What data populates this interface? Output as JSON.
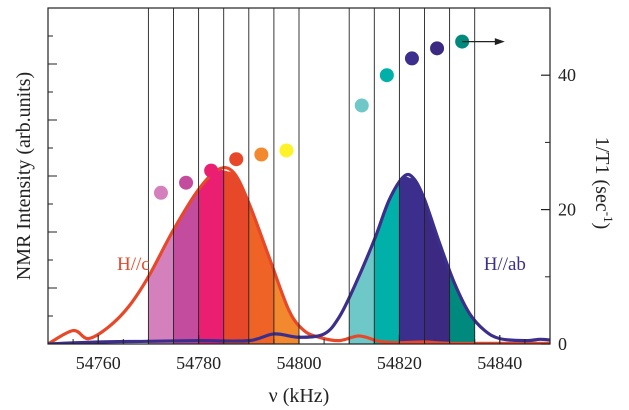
{
  "chart_data": {
    "type": "line",
    "title": "",
    "xlabel": "ν (kHz)",
    "ylabel_left": "NMR Intensity (arb.units)",
    "ylabel_right_base": "1/T1 (sec",
    "ylabel_right_sup": "-1",
    "ylabel_right_close": ")",
    "xlim": [
      54750,
      54850
    ],
    "ylim_right": [
      0,
      50
    ],
    "x_ticks": [
      54760,
      54780,
      54800,
      54820,
      54840
    ],
    "y_right_ticks": [
      0,
      20,
      40
    ],
    "grid": false,
    "band_edges": [
      54770,
      54775,
      54780,
      54785,
      54790,
      54795,
      54800,
      54810,
      54815,
      54820,
      54825,
      54830,
      54835
    ],
    "series": [
      {
        "name": "H//c",
        "color": "#e8482a",
        "x": [
          54750,
          54755,
          54758,
          54762,
          54766,
          54770,
          54775,
          54780,
          54784,
          54787,
          54790,
          54794,
          54798,
          54801,
          54804,
          54808,
          54812,
          54816,
          54820,
          54825,
          54830,
          54840,
          54850
        ],
        "y": [
          0,
          2,
          0.8,
          2.5,
          5.5,
          10,
          17,
          23,
          26,
          25.5,
          21,
          13,
          5,
          2,
          1,
          0.5,
          1.2,
          0.4,
          0.2,
          0.3,
          0.1,
          0.1,
          0.1
        ],
        "band_colors": [
          "#d480bc",
          "#c44c9f",
          "#ea1f72",
          "#e8482a",
          "#ef6326",
          "#f2892e",
          "#fff228"
        ]
      },
      {
        "name": "H//ab",
        "color": "#3b2e8c",
        "x": [
          54750,
          54760,
          54770,
          54780,
          54790,
          54795,
          54800,
          54805,
          54808,
          54811,
          54815,
          54818,
          54821,
          54823,
          54825,
          54828,
          54831,
          54834,
          54837,
          54840,
          54845,
          54848,
          54850
        ],
        "y": [
          0,
          0.3,
          0.4,
          0.5,
          0.5,
          1.5,
          1,
          1.5,
          4,
          8.5,
          15.5,
          21.5,
          25,
          24.5,
          21.5,
          15,
          9,
          4.5,
          2,
          0.8,
          0.5,
          0.7,
          0.6
        ],
        "band_colors": [
          "#6ec8c8",
          "#00b0a9",
          "#3b2e8c",
          "#3c2a82",
          "#008a7e"
        ]
      },
      {
        "name": "1/T1",
        "type": "scatter",
        "axis": "right",
        "x": [
          54772.5,
          54777.5,
          54782.5,
          54787.5,
          54792.5,
          54797.5,
          54812.5,
          54817.5,
          54822.5,
          54827.5,
          54832.5
        ],
        "y": [
          22.5,
          24,
          25.8,
          27.5,
          28.2,
          28.8,
          35.5,
          40,
          42.5,
          44,
          45
        ],
        "colors": [
          "#d480bc",
          "#c44c9f",
          "#ea1f72",
          "#e8482a",
          "#f2892e",
          "#fff228",
          "#6ec8c8",
          "#00b0a9",
          "#3b2e8c",
          "#3c2a82",
          "#008a7e"
        ]
      }
    ],
    "annotations": [
      {
        "text": "H//c",
        "color": "#e8482a",
        "x": 54767,
        "y": 11
      },
      {
        "text": "H//ab",
        "color": "#3b2e8c",
        "x": 54841,
        "y": 11
      }
    ],
    "arrow": {
      "from_x": 54832.5,
      "to_x": 54841,
      "y": 45
    }
  }
}
